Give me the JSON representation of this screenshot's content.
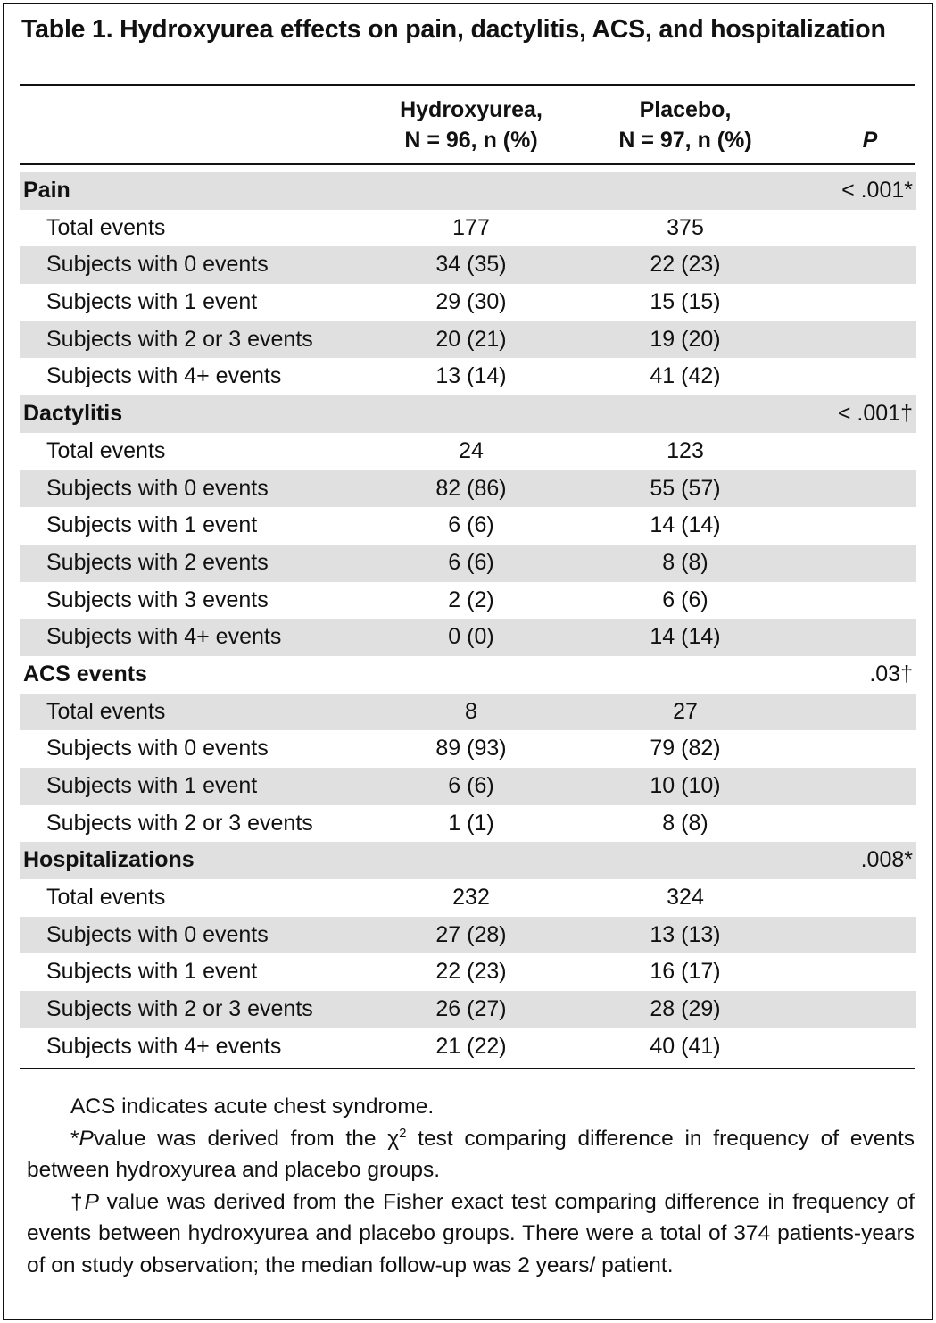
{
  "table": {
    "title": "Table 1. Hydroxyurea effects on pain, dactylitis, ACS, and hospitalization",
    "columns": {
      "hydroxyurea_line1": "Hydroxyurea,",
      "hydroxyurea_line2": "N = 96, n (%)",
      "placebo_line1": "Placebo,",
      "placebo_line2": "N = 97, n (%)",
      "p": "P"
    },
    "sections": [
      {
        "name": "Pain",
        "p": "< .001*",
        "rows": [
          {
            "label": "Total events",
            "hu": "177",
            "pl": "375"
          },
          {
            "label": "Subjects with 0 events",
            "hu": "34 (35)",
            "pl": "22 (23)"
          },
          {
            "label": "Subjects with 1 event",
            "hu": "29 (30)",
            "pl": "15 (15)"
          },
          {
            "label": "Subjects with 2 or 3 events",
            "hu": "20 (21)",
            "pl": "19 (20)"
          },
          {
            "label": "Subjects with 4+ events",
            "hu": "13 (14)",
            "pl": "41 (42)"
          }
        ]
      },
      {
        "name": "Dactylitis",
        "p": "< .001†",
        "rows": [
          {
            "label": "Total events",
            "hu": "24",
            "pl": "123"
          },
          {
            "label": "Subjects with 0 events",
            "hu": "82 (86)",
            "pl": "55 (57)"
          },
          {
            "label": "Subjects with 1 event",
            "hu": "6 (6)",
            "pl": "14 (14)"
          },
          {
            "label": "Subjects with 2 events",
            "hu": "6 (6)",
            "pl": "8 (8)"
          },
          {
            "label": "Subjects with 3 events",
            "hu": "2 (2)",
            "pl": "6 (6)"
          },
          {
            "label": "Subjects with 4+ events",
            "hu": "0 (0)",
            "pl": "14 (14)"
          }
        ]
      },
      {
        "name": "ACS events",
        "p": ".03†",
        "rows": [
          {
            "label": "Total events",
            "hu": "8",
            "pl": "27"
          },
          {
            "label": "Subjects with 0 events",
            "hu": "89 (93)",
            "pl": "79 (82)"
          },
          {
            "label": "Subjects with 1 event",
            "hu": "6 (6)",
            "pl": "10 (10)"
          },
          {
            "label": "Subjects with 2 or 3 events",
            "hu": "1 (1)",
            "pl": "8 (8)"
          }
        ]
      },
      {
        "name": "Hospitalizations",
        "p": ".008*",
        "rows": [
          {
            "label": "Total events",
            "hu": "232",
            "pl": "324"
          },
          {
            "label": "Subjects with 0 events",
            "hu": "27 (28)",
            "pl": "13 (13)"
          },
          {
            "label": "Subjects with 1 event",
            "hu": "22 (23)",
            "pl": "16 (17)"
          },
          {
            "label": "Subjects with 2 or 3 events",
            "hu": "26 (27)",
            "pl": "28 (29)"
          },
          {
            "label": "Subjects with 4+ events",
            "hu": "21 (22)",
            "pl": "40 (41)"
          }
        ]
      }
    ]
  },
  "footnotes": {
    "abbrev": "ACS indicates acute chest syndrome.",
    "star_symbol": "*",
    "star_p": "P",
    "star_text_a": "value was derived from the χ",
    "star_sup": "2",
    "star_text_b": " test comparing difference in frequency of events between hydroxyurea and placebo groups.",
    "dagger_symbol": "†",
    "dagger_p": "P",
    "dagger_text": " value was derived from the Fisher exact test comparing difference in frequency of events between hydroxyurea and placebo groups. There were a total of 374 patients-years of on study observation; the median follow-up was 2 years/ patient."
  },
  "colors": {
    "shade": "#e0e0e0",
    "ink": "#111111"
  }
}
